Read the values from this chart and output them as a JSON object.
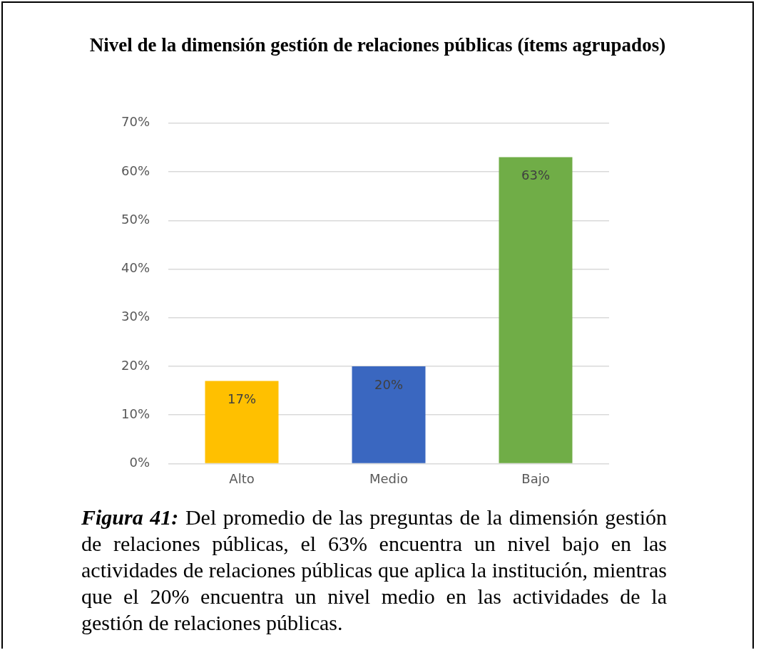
{
  "chart_data": {
    "type": "bar",
    "title": "Nivel de la dimensión gestión de relaciones públicas (ítems agrupados)",
    "categories": [
      "Alto",
      "Medio",
      "Bajo"
    ],
    "values": [
      17,
      20,
      63
    ],
    "colors": [
      "#ffc000",
      "#3a67c0",
      "#70ad47"
    ],
    "value_labels": [
      "17%",
      "20%",
      "63%"
    ],
    "ylim": [
      0,
      70
    ],
    "yticks": [
      {
        "value": 0,
        "label": "0%"
      },
      {
        "value": 10,
        "label": "10%"
      },
      {
        "value": 20,
        "label": "20%"
      },
      {
        "value": 30,
        "label": "30%"
      },
      {
        "value": 40,
        "label": "40%"
      },
      {
        "value": 50,
        "label": "50%"
      },
      {
        "value": 60,
        "label": "60%"
      },
      {
        "value": 70,
        "label": "70%"
      }
    ],
    "grid": "y",
    "legend": false,
    "annotations": [
      "Figura 41: Del promedio de las preguntas de la dimensión gestión de relaciones públicas, el 63% encuentra un nivel bajo en las actividades de relaciones públicas que aplica la institución, mientras que el 20% encuentra un nivel medio en las actividades de la gestión de relaciones públicas."
    ]
  }
}
